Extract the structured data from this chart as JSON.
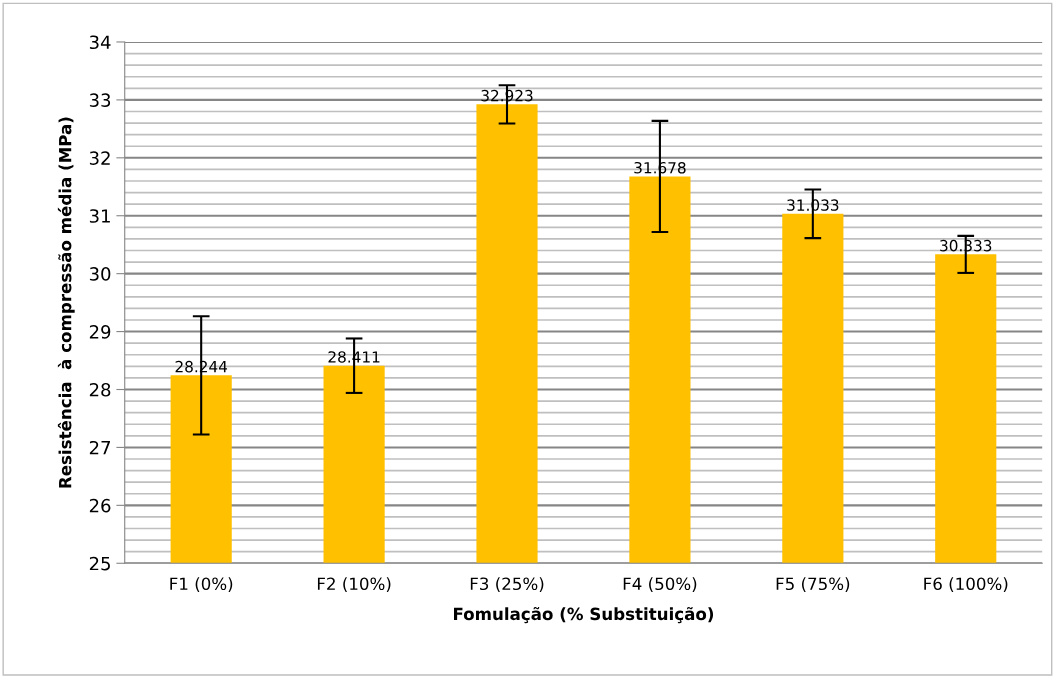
{
  "chart_data": {
    "type": "bar",
    "xlabel": "Fomulação (% Substituição)",
    "ylabel": "Resistência  à compressão média (MPa)",
    "categories": [
      "F1 (0%)",
      "F2 (10%)",
      "F3 (25%)",
      "F4 (50%)",
      "F5 (75%)",
      "F6 (100%)"
    ],
    "values": [
      28.244,
      28.411,
      32.923,
      31.678,
      31.033,
      30.333
    ],
    "errors": [
      1.02,
      0.47,
      0.33,
      0.96,
      0.42,
      0.32
    ],
    "color": "#ffc000",
    "data_labels": true,
    "ylim": [
      25,
      34
    ],
    "yticks": [
      25,
      {
        "value": 25.2,
        "label": null
      },
      {
        "value": 25.4,
        "label": null
      },
      {
        "value": 25.6,
        "label": null
      },
      {
        "value": 25.8,
        "label": null
      },
      26,
      {
        "value": 26.2,
        "label": null
      },
      {
        "value": 26.4,
        "label": null
      },
      {
        "value": 26.6,
        "label": null
      },
      {
        "value": 26.8,
        "label": null
      },
      27,
      {
        "value": 27.2,
        "label": null
      },
      {
        "value": 27.4,
        "label": null
      },
      {
        "value": 27.6,
        "label": null
      },
      {
        "value": 27.8,
        "label": null
      },
      28,
      {
        "value": 28.2,
        "label": null
      },
      {
        "value": 28.4,
        "label": null
      },
      {
        "value": 28.6,
        "label": null
      },
      {
        "value": 28.8,
        "label": null
      },
      29,
      {
        "value": 29.2,
        "label": null
      },
      {
        "value": 29.4,
        "label": null
      },
      {
        "value": 29.6,
        "label": null
      },
      {
        "value": 29.8,
        "label": null
      },
      30,
      {
        "value": 30.2,
        "label": null
      },
      {
        "value": 30.4,
        "label": null
      },
      {
        "value": 30.6,
        "label": null
      },
      {
        "value": 30.8,
        "label": null
      },
      31,
      {
        "value": 31.2,
        "label": null
      },
      {
        "value": 31.4,
        "label": null
      },
      {
        "value": 31.6,
        "label": null
      },
      {
        "value": 31.8,
        "label": null
      },
      32,
      {
        "value": 32.2,
        "label": null
      },
      {
        "value": 32.4,
        "label": null
      },
      {
        "value": 32.6,
        "label": null
      },
      {
        "value": 32.8,
        "label": null
      },
      33,
      {
        "value": 33.2,
        "label": null
      },
      {
        "value": 33.4,
        "label": null
      },
      {
        "value": 33.6,
        "label": null
      },
      {
        "value": 33.8,
        "label": null
      },
      34
    ],
    "grid": "y"
  }
}
